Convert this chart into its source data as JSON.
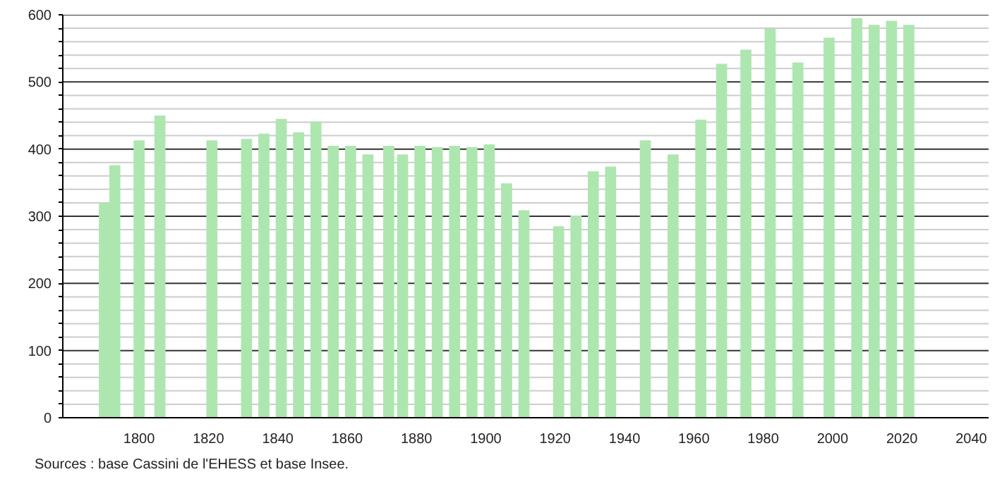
{
  "chart_data": {
    "type": "bar",
    "x": [
      1790,
      1793,
      1800,
      1806,
      1821,
      1831,
      1836,
      1841,
      1846,
      1851,
      1856,
      1861,
      1866,
      1872,
      1876,
      1881,
      1886,
      1891,
      1896,
      1901,
      1906,
      1911,
      1921,
      1926,
      1931,
      1936,
      1946,
      1954,
      1962,
      1968,
      1975,
      1982,
      1990,
      1999,
      2007,
      2012,
      2017,
      2022
    ],
    "values": [
      320,
      376,
      413,
      450,
      413,
      415,
      423,
      445,
      425,
      441,
      405,
      405,
      392,
      405,
      392,
      405,
      403,
      405,
      403,
      407,
      349,
      309,
      285,
      301,
      367,
      374,
      413,
      392,
      444,
      527,
      548,
      579,
      529,
      566,
      595,
      585,
      591,
      585
    ],
    "color": "#aee6b0",
    "xlim": [
      1778,
      2045
    ],
    "xticks": [
      1800,
      1820,
      1840,
      1860,
      1880,
      1900,
      1920,
      1940,
      1960,
      1980,
      2000,
      2020,
      2040
    ],
    "ylim": [
      0,
      600
    ],
    "yticks": [
      0,
      {
        "value": 20,
        "label": null
      },
      {
        "value": 40,
        "label": null
      },
      {
        "value": 60,
        "label": null
      },
      {
        "value": 80,
        "label": null
      },
      100,
      {
        "value": 120,
        "label": null
      },
      {
        "value": 140,
        "label": null
      },
      {
        "value": 160,
        "label": null
      },
      {
        "value": 180,
        "label": null
      },
      200,
      {
        "value": 220,
        "label": null
      },
      {
        "value": 240,
        "label": null
      },
      {
        "value": 260,
        "label": null
      },
      {
        "value": 280,
        "label": null
      },
      300,
      {
        "value": 320,
        "label": null
      },
      {
        "value": 340,
        "label": null
      },
      {
        "value": 360,
        "label": null
      },
      {
        "value": 380,
        "label": null
      },
      400,
      {
        "value": 420,
        "label": null
      },
      {
        "value": 440,
        "label": null
      },
      {
        "value": 460,
        "label": null
      },
      {
        "value": 480,
        "label": null
      },
      500,
      {
        "value": 520,
        "label": null
      },
      {
        "value": 540,
        "label": null
      },
      {
        "value": 560,
        "label": null
      },
      {
        "value": 580,
        "label": null
      },
      600
    ],
    "grid": "y",
    "annotations": [
      "Sources : base Cassini de l'EHESS et base Insee."
    ]
  }
}
